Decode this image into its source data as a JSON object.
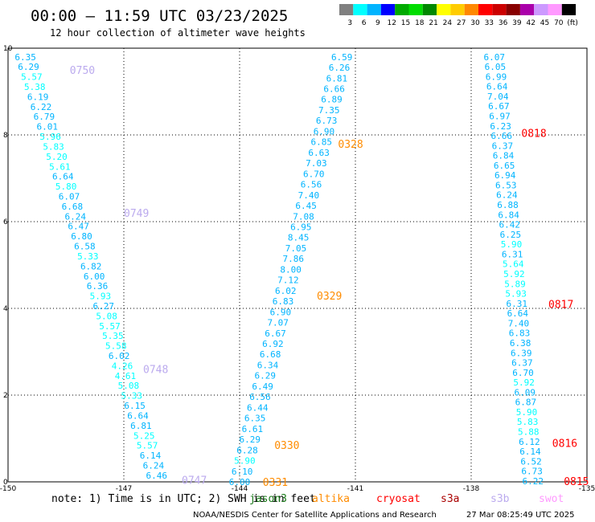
{
  "header": {
    "title": "00:00 — 11:59 UTC 03/23/2025",
    "subtitle": "12 hour collection of altimeter wave heights"
  },
  "colorbar": {
    "colors": [
      "#808080",
      "#00ffff",
      "#00b4ff",
      "#0000ff",
      "#00aa00",
      "#00dd00",
      "#008800",
      "#ffff00",
      "#ffcc00",
      "#ff8800",
      "#ff0000",
      "#cc0000",
      "#880000",
      "#aa00aa",
      "#cc99ff",
      "#ff99ff",
      "#000000"
    ],
    "labels": [
      "3",
      "6",
      "9",
      "12",
      "15",
      "18",
      "21",
      "24",
      "27",
      "30",
      "33",
      "36",
      "39",
      "42",
      "45",
      "70",
      "(ft)"
    ]
  },
  "footer": {
    "note": "note:  1) Time is in UTC; 2) SWH is in feet",
    "missions": [
      {
        "name": "jason3",
        "color": "#1a7a1a"
      },
      {
        "name": "altika",
        "color": "#ff8c00"
      },
      {
        "name": "cryosat",
        "color": "#ff0000"
      },
      {
        "name": "s3a",
        "color": "#aa0000"
      },
      {
        "name": "s3b",
        "color": "#bbaaee"
      },
      {
        "name": "swot",
        "color": "#ff99ff"
      }
    ],
    "credit": "NOAA/NESDIS Center for Satellite Applications and Research",
    "timestamp": "27 Mar 08:25:49 UTC 2025"
  },
  "chart_data": {
    "type": "scatter",
    "title": "00:00 — 11:59 UTC 03/23/2025",
    "subtitle": "12 hour collection of altimeter wave heights",
    "xlim": [
      -150,
      -135
    ],
    "ylim": [
      0,
      10
    ],
    "xticks": [
      "-150",
      "-147",
      "-144",
      "-141",
      "-138",
      "-135"
    ],
    "yticks": [
      "0",
      "2",
      "4",
      "6",
      "8",
      "10"
    ],
    "grid": true,
    "color_low": "#00b4ff",
    "color_high": "#00ffff",
    "tracks": [
      {
        "mission": "s3b",
        "color": "#bbaaee",
        "start": [
          -149.55,
          9.8
        ],
        "end": [
          -146.15,
          0.15
        ],
        "values": [
          "6.35",
          "6.29",
          "5.57",
          "5.38",
          "6.19",
          "6.22",
          "6.79",
          "6.01",
          "5.96",
          "5.83",
          "5.20",
          "5.61",
          "6.64",
          "5.80",
          "6.07",
          "6.68",
          "6.24",
          "6.47",
          "6.80",
          "6.58",
          "5.33",
          "6.82",
          "6.00",
          "6.36",
          "5.93",
          "6.27",
          "5.08",
          "5.57",
          "5.35",
          "5.58",
          "6.02",
          "4.26",
          "4.61",
          "5.08",
          "5.33",
          "6.15",
          "6.64",
          "6.81",
          "5.25",
          "5.57",
          "6.14",
          "6.24",
          "6.46"
        ],
        "passes": [
          {
            "label": "0750",
            "x": -148.4,
            "y": 9.5
          },
          {
            "label": "0749",
            "x": -147.0,
            "y": 6.2
          },
          {
            "label": "0748",
            "x": -146.5,
            "y": 2.6
          },
          {
            "label": "0747",
            "x": -145.5,
            "y": 0.05
          }
        ]
      },
      {
        "mission": "altika",
        "color": "#ff8c00",
        "start": [
          -141.35,
          9.8
        ],
        "end": [
          -144.0,
          0.0
        ],
        "values": [
          "6.59",
          "6.26",
          "6.81",
          "6.66",
          "6.89",
          "7.35",
          "6.73",
          "6.90",
          "6.85",
          "6.63",
          "7.03",
          "6.70",
          "6.56",
          "7.40",
          "6.45",
          "7.08",
          "6.95",
          "8.45",
          "7.05",
          "7.86",
          "8.00",
          "7.12",
          "6.02",
          "6.83",
          "6.90",
          "7.07",
          "6.67",
          "6.92",
          "6.68",
          "6.34",
          "6.29",
          "6.49",
          "6.56",
          "6.44",
          "6.35",
          "6.61",
          "6.29",
          "6.28",
          "5.90",
          "6.10",
          "6.00"
        ],
        "passes": [
          {
            "label": "0328",
            "x": -141.45,
            "y": 7.8
          },
          {
            "label": "0329",
            "x": -142.0,
            "y": 4.3
          },
          {
            "label": "0330",
            "x": -143.1,
            "y": 0.85
          },
          {
            "label": "0331",
            "x": -143.4,
            "y": 0.0
          }
        ]
      },
      {
        "mission": "cryosat",
        "color": "#ff0000",
        "start": [
          -137.4,
          9.8
        ],
        "end": [
          -136.4,
          0.02
        ],
        "values": [
          "6.07",
          "6.05",
          "6.99",
          "6.64",
          "7.04",
          "6.67",
          "6.97",
          "6.23",
          "6.66",
          "6.37",
          "6.84",
          "6.65",
          "6.94",
          "6.53",
          "6.24",
          "6.88",
          "6.84",
          "6.42",
          "6.25",
          "5.90",
          "6.31",
          "5.64",
          "5.92",
          "5.89",
          "5.93",
          "6.31",
          "6.64",
          "7.40",
          "6.83",
          "6.38",
          "6.39",
          "6.37",
          "6.70",
          "5.92",
          "6.09",
          "6.87",
          "5.90",
          "5.83",
          "5.88",
          "6.12",
          "6.14",
          "6.52",
          "6.73",
          "6.22"
        ],
        "passes": [
          {
            "label": "0818",
            "x": -136.7,
            "y": 8.05
          },
          {
            "label": "0817",
            "x": -136.0,
            "y": 4.1
          },
          {
            "label": "0816",
            "x": -135.9,
            "y": 0.9
          },
          {
            "label": "0815",
            "x": -135.6,
            "y": 0.02
          }
        ]
      }
    ]
  }
}
